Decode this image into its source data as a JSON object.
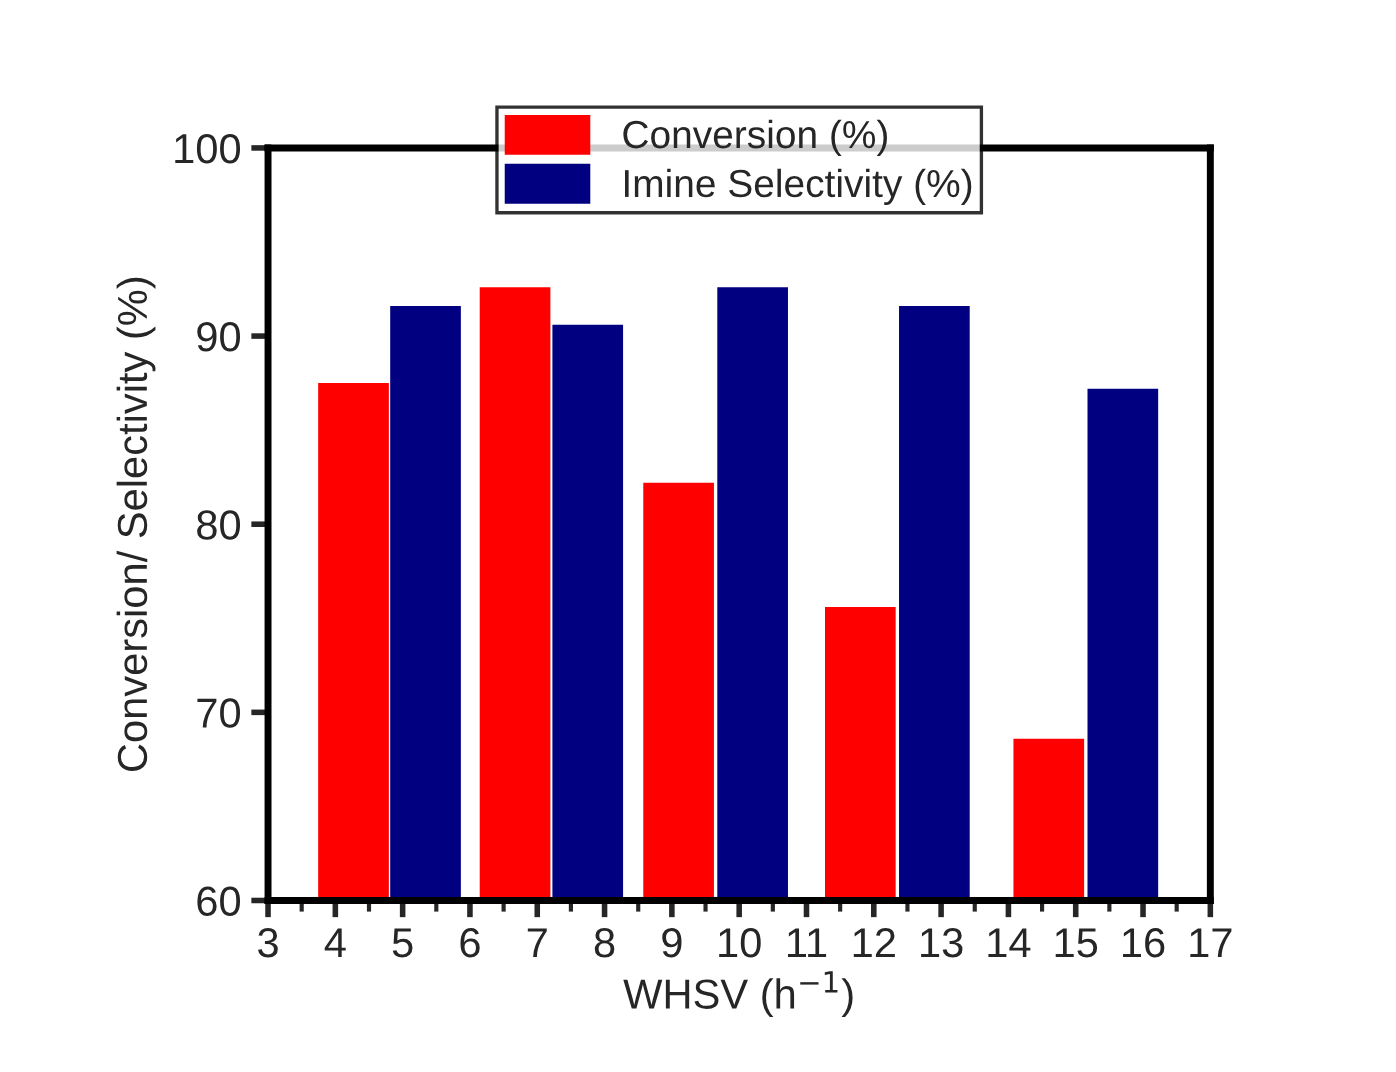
{
  "chart_data": {
    "type": "bar",
    "xlabel": "WHSV (h$^{−1}$)",
    "ylabel": "Conversion/ Selectivity (%)",
    "xlim": [
      3,
      17
    ],
    "xticks": [
      3,
      4,
      5,
      6,
      7,
      8,
      9,
      10,
      11,
      12,
      13,
      14,
      15,
      16,
      17
    ],
    "ylim": [
      60,
      100
    ],
    "yticks": [
      60,
      70,
      80,
      90,
      100
    ],
    "series": [
      {
        "name": "Conversion (%)",
        "color": "#ff0000",
        "x": [
          4.27,
          6.67,
          9.1,
          11.8,
          14.6
        ],
        "values": [
          87.5,
          92.6,
          82.2,
          75.6,
          68.6
        ]
      },
      {
        "name": "Imine Selectivity (%)",
        "color": "#000080",
        "x": [
          5.34,
          7.75,
          10.2,
          12.9,
          15.7
        ],
        "values": [
          91.6,
          90.6,
          92.6,
          91.6,
          87.2
        ]
      }
    ],
    "legend": "top",
    "grid": false
  }
}
